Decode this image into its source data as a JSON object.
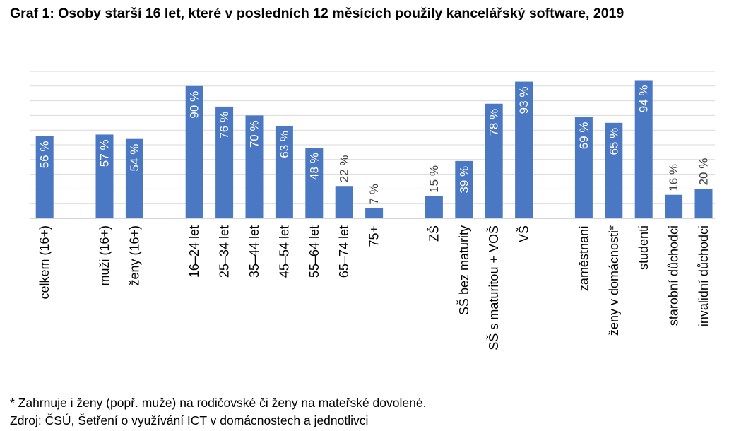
{
  "title": "Graf 1: Osoby starší 16 let, které v posledních 12 měsících použily kancelářský software, 2019",
  "footnote": "* Zahrnuje i ženy (popř. muže) na rodičovské či ženy na mateřské dovolené.",
  "source": "Zdroj: ČSÚ, Šetření o využívání ICT v domácnostech a jednotlivci",
  "colors": {
    "bar": "#4a78c2",
    "grid": "#d9d9d9",
    "axis": "#bfbfbf"
  },
  "chart_data": {
    "type": "bar",
    "unit": "%",
    "ylim": [
      0,
      100
    ],
    "grid": true,
    "groups": [
      {
        "categories": [
          "celkem (16+)"
        ],
        "values": [
          56
        ]
      },
      {
        "categories": [
          "muži (16+)",
          "ženy (16+)"
        ],
        "values": [
          57,
          54
        ]
      },
      {
        "categories": [
          "16–24 let",
          "25–34 let",
          "35–44 let",
          "45–54 let",
          "55–64 let",
          "65–74 let",
          "75+"
        ],
        "values": [
          90,
          76,
          70,
          63,
          48,
          22,
          7
        ]
      },
      {
        "categories": [
          "ZŠ",
          "SŠ bez maturity",
          "SŠ s maturitou + VOŠ",
          "VŠ"
        ],
        "values": [
          15,
          39,
          78,
          93
        ]
      },
      {
        "categories": [
          "zaměstnaní",
          "ženy v domácnosti*",
          "studenti",
          "starobní důchodci",
          "invalidní důchodci"
        ],
        "values": [
          69,
          65,
          94,
          16,
          20
        ]
      }
    ],
    "data_labels": [
      "56 %",
      "57 %",
      "54 %",
      "90 %",
      "76 %",
      "70 %",
      "63 %",
      "48 %",
      "22 %",
      "7 %",
      "15 %",
      "39 %",
      "78 %",
      "93 %",
      "69 %",
      "65 %",
      "94 %",
      "16 %",
      "20 %"
    ]
  }
}
